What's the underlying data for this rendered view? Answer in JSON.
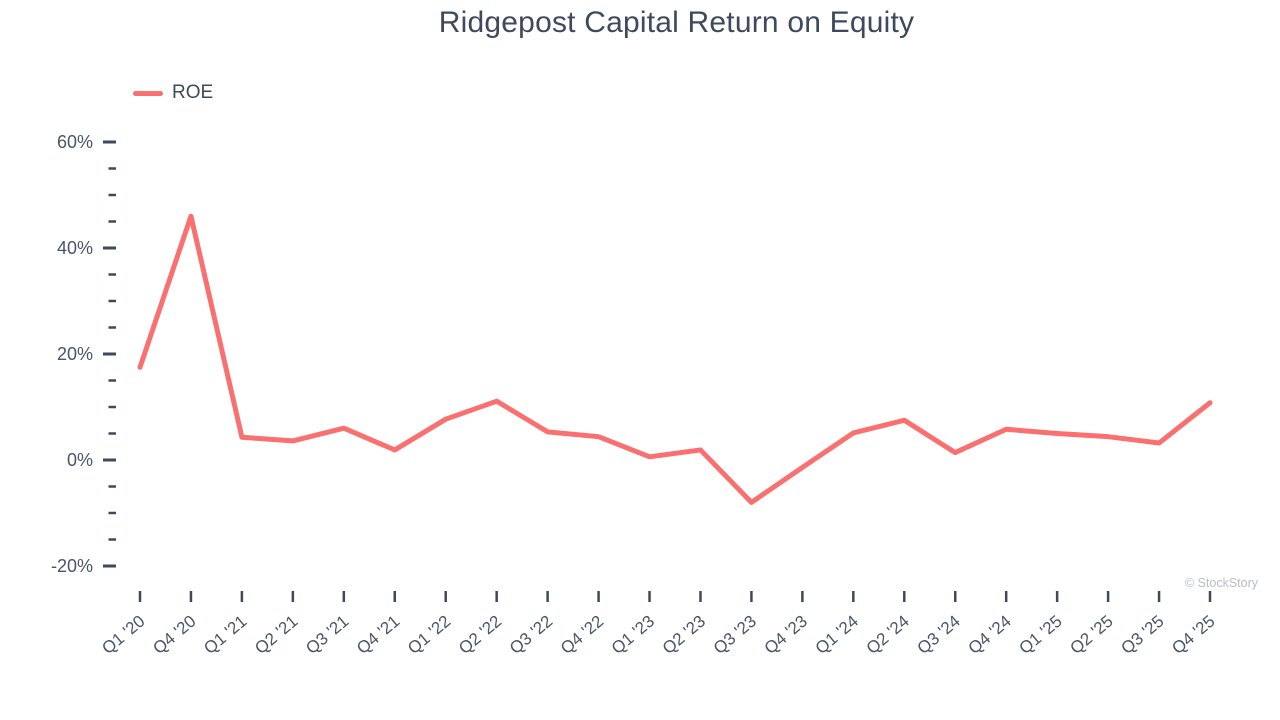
{
  "chart_data": {
    "type": "line",
    "title": "Ridgepost Capital Return on Equity",
    "categories": [
      "Q1 '20",
      "Q4 '20",
      "Q1 '21",
      "Q2 '21",
      "Q3 '21",
      "Q4 '21",
      "Q1 '22",
      "Q2 '22",
      "Q3 '22",
      "Q4 '22",
      "Q1 '23",
      "Q2 '23",
      "Q3 '23",
      "Q4 '23",
      "Q1 '24",
      "Q2 '24",
      "Q3 '24",
      "Q4 '24",
      "Q1 '25",
      "Q2 '25",
      "Q3 '25",
      "Q4 '25"
    ],
    "series": [
      {
        "name": "ROE",
        "color": "#FA7070",
        "values": [
          17.5,
          46,
          4.3,
          3.6,
          6,
          1.9,
          7.7,
          11.1,
          5.3,
          4.4,
          0.6,
          1.9,
          -8,
          -1.4,
          5.1,
          7.5,
          1.4,
          5.8,
          5,
          4.4,
          3.2,
          10.8
        ]
      }
    ],
    "xlabel": "",
    "ylabel": "",
    "y_axis": {
      "unit": "%",
      "major_ticks": [
        60,
        40,
        20,
        0,
        -20
      ],
      "minor_tick_step": 5,
      "ylim": [
        -20,
        60
      ]
    },
    "x_tick_label_rotation_deg": -40,
    "grid": false,
    "legend_position": "top-left"
  },
  "watermark": {
    "text": "© StockStory"
  },
  "colors": {
    "line": "#FA7070",
    "title": "#3E4A5B",
    "axis_label": "#4A5568",
    "tick": "#3E4A5B",
    "watermark": "#B9BFC6",
    "background": "#FFFFFF"
  }
}
